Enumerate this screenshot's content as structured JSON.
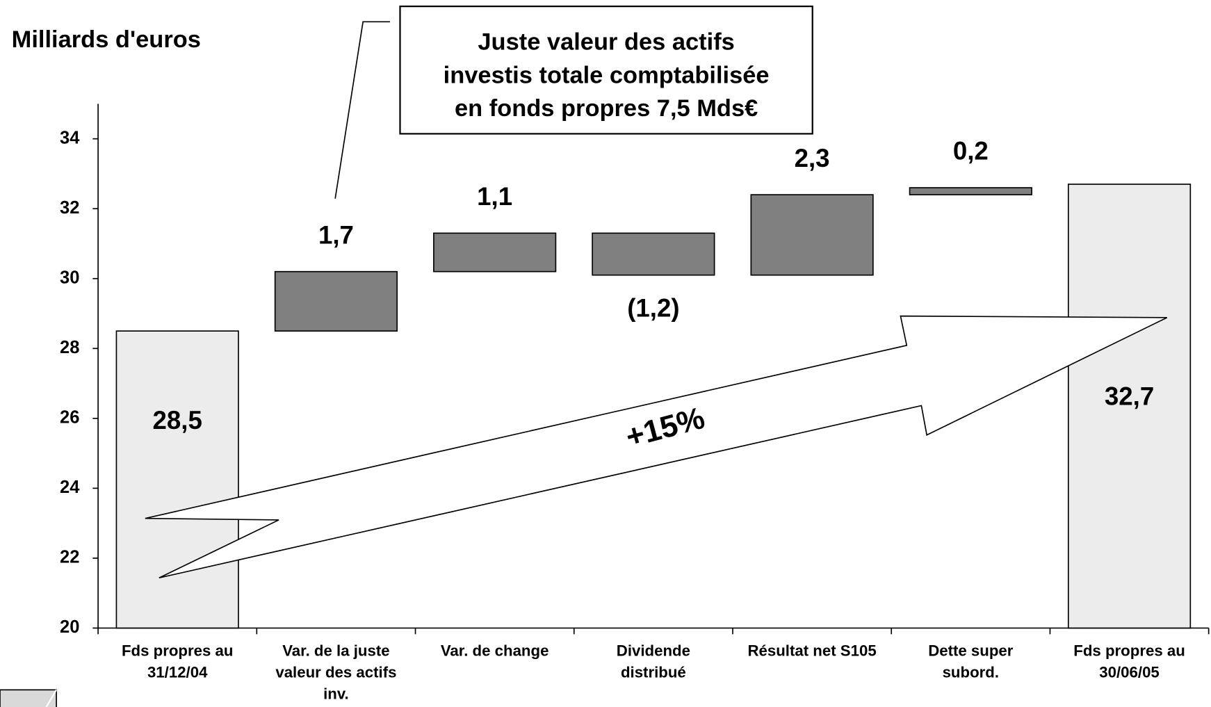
{
  "chart_data": {
    "type": "waterfall",
    "y_axis_title": "Milliards d'euros",
    "callout": [
      "Juste valeur des actifs",
      "investis totale comptabilisée",
      "en fonds propres 7,5 Mds€"
    ],
    "arrow_label": "+15%",
    "categories": [
      "Fds propres au 31/12/04",
      "Var. de la juste valeur des actifs inv.",
      "Var. de change",
      "Dividende distribué",
      "Résultat net S105",
      "Dette super subord.",
      "Fds propres au 30/06/05"
    ],
    "measure": [
      "absolute",
      "relative",
      "relative",
      "relative",
      "relative",
      "relative",
      "absolute"
    ],
    "values": [
      28.5,
      1.7,
      1.1,
      -1.2,
      2.3,
      0.2,
      32.7
    ],
    "value_labels": [
      "28,5",
      "1,7",
      "1,1",
      "(1,2)",
      "2,3",
      "0,2",
      "32,7"
    ],
    "total_color": "#ececec",
    "delta_color": "#808080",
    "ylim": [
      20,
      35
    ],
    "yticks": [
      20,
      22,
      24,
      26,
      28,
      30,
      32,
      34
    ]
  }
}
